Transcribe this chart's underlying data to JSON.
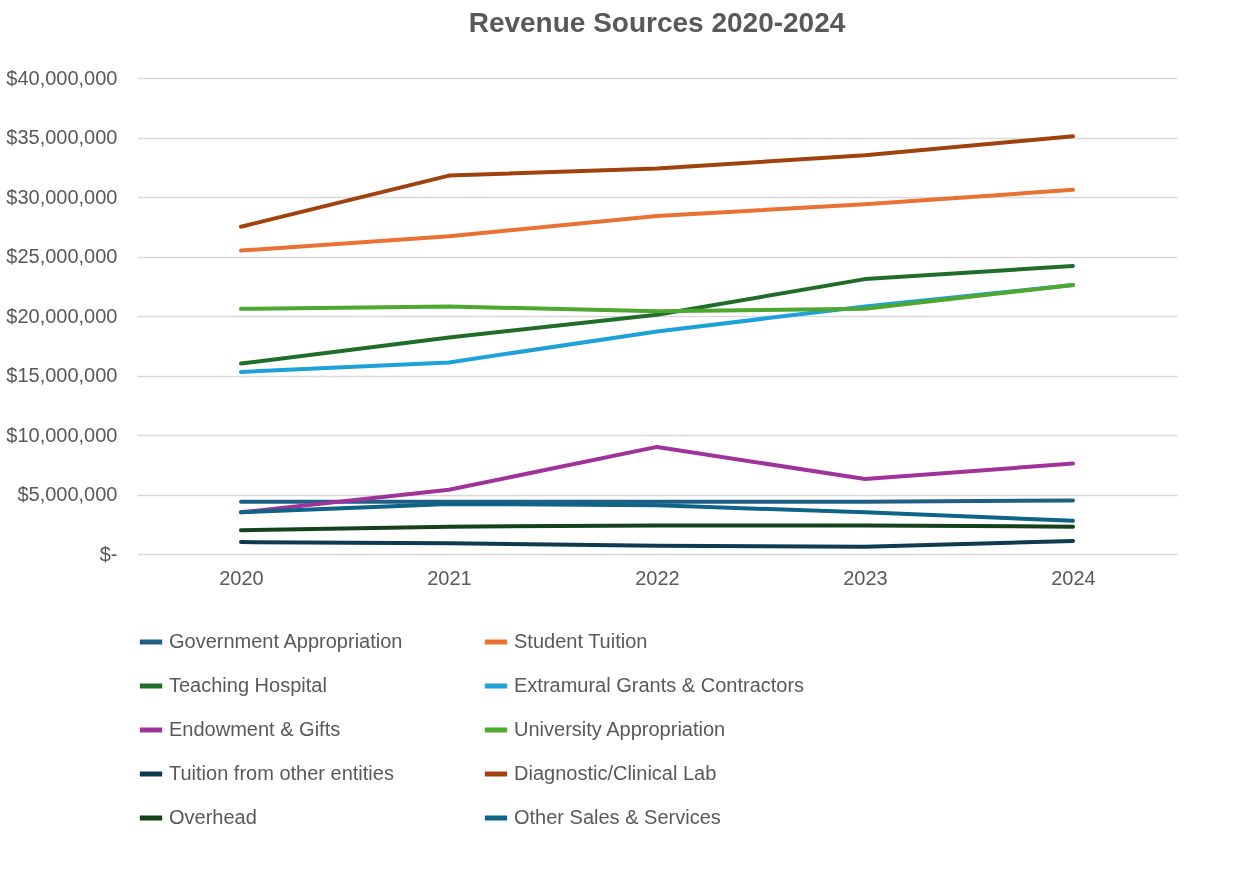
{
  "chart_data": {
    "type": "line",
    "title": "Revenue Sources 2020-2024",
    "categories": [
      "2020",
      "2021",
      "2022",
      "2023",
      "2024"
    ],
    "ylim": [
      0,
      40000000
    ],
    "yticks": [
      {
        "value": 0,
        "label": "$-"
      },
      {
        "value": 5000000,
        "label": "$5,000,000"
      },
      {
        "value": 10000000,
        "label": "$10,000,000"
      },
      {
        "value": 15000000,
        "label": "$15,000,000"
      },
      {
        "value": 20000000,
        "label": "$20,000,000"
      },
      {
        "value": 25000000,
        "label": "$25,000,000"
      },
      {
        "value": 30000000,
        "label": "$30,000,000"
      },
      {
        "value": 35000000,
        "label": "$35,000,000"
      },
      {
        "value": 40000000,
        "label": "$40,000,000"
      }
    ],
    "grid": "y",
    "legend": "bottom",
    "marker": "none",
    "line_style": "solid",
    "series": [
      {
        "name": "Government Appropriation",
        "color": "#1f5f86",
        "values": [
          4400000,
          4400000,
          4400000,
          4400000,
          4500000
        ]
      },
      {
        "name": "Student Tuition",
        "color": "#e97132",
        "values": [
          25500000,
          26700000,
          28400000,
          29400000,
          30600000
        ]
      },
      {
        "name": "Teaching Hospital",
        "color": "#1e6e2a",
        "values": [
          16000000,
          18200000,
          20100000,
          23100000,
          24200000
        ]
      },
      {
        "name": "Extramural Grants & Contractors",
        "color": "#1ea1d9",
        "values": [
          15300000,
          16100000,
          18700000,
          20800000,
          22600000
        ]
      },
      {
        "name": "Endowment & Gifts",
        "color": "#a0339b",
        "values": [
          3500000,
          5400000,
          9000000,
          6300000,
          7600000
        ]
      },
      {
        "name": "University Appropriation",
        "color": "#4ea72e",
        "values": [
          20600000,
          20800000,
          20400000,
          20600000,
          22600000
        ]
      },
      {
        "name": "Tuition from other entities",
        "color": "#0e3a52",
        "values": [
          1000000,
          900000,
          700000,
          600000,
          1100000
        ]
      },
      {
        "name": "Diagnostic/Clinical Lab",
        "color": "#a0420e",
        "values": [
          27500000,
          31800000,
          32400000,
          33500000,
          35100000
        ]
      },
      {
        "name": "Overhead",
        "color": "#15421b",
        "values": [
          2000000,
          2300000,
          2400000,
          2400000,
          2300000
        ]
      },
      {
        "name": "Other Sales & Services",
        "color": "#0e6488",
        "values": [
          3500000,
          4200000,
          4100000,
          3500000,
          2800000
        ]
      }
    ]
  }
}
